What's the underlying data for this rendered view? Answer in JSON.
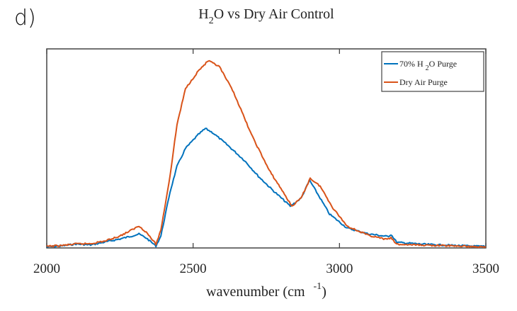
{
  "panel_label": "d)",
  "chart_data": {
    "type": "line",
    "title": "H₂O vs Dry Air Control",
    "title_parts": {
      "pre": "H",
      "sub": "2",
      "post": "O vs Dry Air Control"
    },
    "xlabel": "wavenumber (cm⁻¹)",
    "xlabel_parts": {
      "pre": "wavenumber (cm",
      "sup": "-1",
      "post": ")"
    },
    "ylabel": "",
    "xlim": [
      2000,
      3500
    ],
    "ylim": [
      0,
      1
    ],
    "xticks": [
      2000,
      2500,
      3000,
      3500
    ],
    "xtick_labels": [
      "2000",
      "2500",
      "3000",
      "3500"
    ],
    "grid": false,
    "legend_position": "top-right",
    "series": [
      {
        "name": "70% H₂O Purge",
        "legend_parts": {
          "pre": "70% H ",
          "sub": "2",
          "post": "O Purge"
        },
        "color": "#0072BD",
        "x": [
          2000,
          2050,
          2100,
          2150,
          2200,
          2250,
          2290,
          2315,
          2340,
          2373,
          2390,
          2421,
          2445,
          2474,
          2518,
          2542,
          2566,
          2615,
          2675,
          2723,
          2772,
          2832,
          2869,
          2898,
          2922,
          2966,
          3026,
          3098,
          3166,
          3176,
          3196,
          3292,
          3400,
          3500
        ],
        "y": [
          0.005,
          0.01,
          0.02,
          0.015,
          0.03,
          0.045,
          0.06,
          0.07,
          0.05,
          0.01,
          0.06,
          0.28,
          0.41,
          0.5,
          0.57,
          0.6,
          0.58,
          0.52,
          0.44,
          0.36,
          0.29,
          0.21,
          0.25,
          0.34,
          0.28,
          0.17,
          0.1,
          0.071,
          0.057,
          0.068,
          0.028,
          0.018,
          0.012,
          0.007
        ]
      },
      {
        "name": "Dry Air Purge",
        "legend_parts": {
          "pre": "Dry Air Purge",
          "sub": "",
          "post": ""
        },
        "color": "#D95319",
        "x": [
          2000,
          2050,
          2100,
          2150,
          2200,
          2250,
          2290,
          2315,
          2340,
          2373,
          2390,
          2421,
          2445,
          2474,
          2518,
          2552,
          2590,
          2639,
          2699,
          2760,
          2808,
          2837,
          2869,
          2900,
          2934,
          2978,
          3026,
          3098,
          3159,
          3176,
          3196,
          3292,
          3400,
          3500
        ],
        "y": [
          0.008,
          0.012,
          0.02,
          0.022,
          0.035,
          0.06,
          0.09,
          0.11,
          0.08,
          0.018,
          0.09,
          0.36,
          0.62,
          0.8,
          0.89,
          0.94,
          0.91,
          0.78,
          0.57,
          0.39,
          0.28,
          0.21,
          0.25,
          0.35,
          0.31,
          0.2,
          0.11,
          0.064,
          0.043,
          0.05,
          0.018,
          0.014,
          0.01,
          0.004
        ]
      }
    ]
  }
}
